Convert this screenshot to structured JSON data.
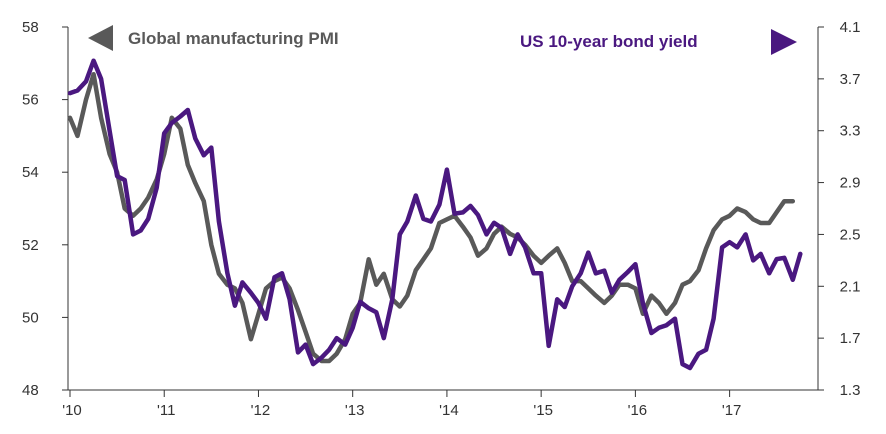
{
  "chart_data": {
    "type": "line",
    "x_ticks": [
      "'10",
      "'11",
      "'12",
      "'13",
      "'14",
      "'15",
      "'16",
      "'17"
    ],
    "left_axis": {
      "ticks": [
        "58",
        "56",
        "54",
        "52",
        "50",
        "48"
      ],
      "range": [
        48,
        58
      ]
    },
    "right_axis": {
      "ticks": [
        "4.1",
        "3.7",
        "3.3",
        "2.9",
        "2.5",
        "2.1",
        "1.7",
        "1.3"
      ],
      "range": [
        1.3,
        4.1
      ]
    },
    "x_range": [
      2010.0,
      2017.8
    ],
    "series": [
      {
        "name": "Global manufacturing PMI",
        "axis": "left",
        "color": "#595959",
        "legend_arrow": "left",
        "points": [
          [
            2010.0,
            55.5
          ],
          [
            2010.08,
            55.0
          ],
          [
            2010.17,
            56.0
          ],
          [
            2010.25,
            56.7
          ],
          [
            2010.33,
            55.5
          ],
          [
            2010.42,
            54.5
          ],
          [
            2010.5,
            54.0
          ],
          [
            2010.58,
            53.0
          ],
          [
            2010.67,
            52.8
          ],
          [
            2010.75,
            53.0
          ],
          [
            2010.83,
            53.3
          ],
          [
            2010.92,
            53.8
          ],
          [
            2011.0,
            54.5
          ],
          [
            2011.08,
            55.5
          ],
          [
            2011.17,
            55.2
          ],
          [
            2011.25,
            54.2
          ],
          [
            2011.33,
            53.7
          ],
          [
            2011.42,
            53.2
          ],
          [
            2011.5,
            52.0
          ],
          [
            2011.58,
            51.2
          ],
          [
            2011.67,
            50.9
          ],
          [
            2011.75,
            50.8
          ],
          [
            2011.83,
            50.4
          ],
          [
            2011.92,
            49.4
          ],
          [
            2012.0,
            50.1
          ],
          [
            2012.08,
            50.8
          ],
          [
            2012.17,
            51.0
          ],
          [
            2012.25,
            51.1
          ],
          [
            2012.33,
            50.8
          ],
          [
            2012.42,
            50.2
          ],
          [
            2012.5,
            49.6
          ],
          [
            2012.58,
            49.0
          ],
          [
            2012.67,
            48.8
          ],
          [
            2012.75,
            48.8
          ],
          [
            2012.83,
            49.0
          ],
          [
            2012.92,
            49.4
          ],
          [
            2013.0,
            50.1
          ],
          [
            2013.08,
            50.4
          ],
          [
            2013.17,
            51.6
          ],
          [
            2013.25,
            50.9
          ],
          [
            2013.33,
            51.2
          ],
          [
            2013.42,
            50.5
          ],
          [
            2013.5,
            50.3
          ],
          [
            2013.58,
            50.6
          ],
          [
            2013.67,
            51.3
          ],
          [
            2013.75,
            51.6
          ],
          [
            2013.83,
            51.9
          ],
          [
            2013.92,
            52.6
          ],
          [
            2014.0,
            52.7
          ],
          [
            2014.08,
            52.8
          ],
          [
            2014.17,
            52.5
          ],
          [
            2014.25,
            52.2
          ],
          [
            2014.33,
            51.7
          ],
          [
            2014.42,
            51.9
          ],
          [
            2014.5,
            52.3
          ],
          [
            2014.58,
            52.5
          ],
          [
            2014.67,
            52.3
          ],
          [
            2014.75,
            52.2
          ],
          [
            2014.83,
            52.0
          ],
          [
            2014.92,
            51.7
          ],
          [
            2015.0,
            51.5
          ],
          [
            2015.08,
            51.7
          ],
          [
            2015.17,
            51.9
          ],
          [
            2015.25,
            51.5
          ],
          [
            2015.33,
            51.0
          ],
          [
            2015.42,
            51.0
          ],
          [
            2015.5,
            50.8
          ],
          [
            2015.58,
            50.6
          ],
          [
            2015.67,
            50.4
          ],
          [
            2015.75,
            50.6
          ],
          [
            2015.83,
            50.9
          ],
          [
            2015.92,
            50.9
          ],
          [
            2016.0,
            50.8
          ],
          [
            2016.08,
            50.1
          ],
          [
            2016.17,
            50.6
          ],
          [
            2016.25,
            50.4
          ],
          [
            2016.33,
            50.1
          ],
          [
            2016.42,
            50.4
          ],
          [
            2016.5,
            50.9
          ],
          [
            2016.58,
            51.0
          ],
          [
            2016.67,
            51.3
          ],
          [
            2016.75,
            51.9
          ],
          [
            2016.83,
            52.4
          ],
          [
            2016.92,
            52.7
          ],
          [
            2017.0,
            52.8
          ],
          [
            2017.08,
            53.0
          ],
          [
            2017.17,
            52.9
          ],
          [
            2017.25,
            52.7
          ],
          [
            2017.33,
            52.6
          ],
          [
            2017.42,
            52.6
          ],
          [
            2017.5,
            52.9
          ],
          [
            2017.58,
            53.2
          ],
          [
            2017.67,
            53.2
          ]
        ]
      },
      {
        "name": "US 10-year bond yield",
        "axis": "right",
        "color": "#4a1880",
        "legend_arrow": "right",
        "points": [
          [
            2010.0,
            3.59
          ],
          [
            2010.08,
            3.61
          ],
          [
            2010.17,
            3.68
          ],
          [
            2010.25,
            3.84
          ],
          [
            2010.33,
            3.7
          ],
          [
            2010.42,
            3.3
          ],
          [
            2010.5,
            2.95
          ],
          [
            2010.58,
            2.92
          ],
          [
            2010.67,
            2.5
          ],
          [
            2010.75,
            2.53
          ],
          [
            2010.83,
            2.62
          ],
          [
            2010.92,
            2.86
          ],
          [
            2011.0,
            3.28
          ],
          [
            2011.08,
            3.36
          ],
          [
            2011.17,
            3.41
          ],
          [
            2011.25,
            3.46
          ],
          [
            2011.33,
            3.24
          ],
          [
            2011.42,
            3.11
          ],
          [
            2011.5,
            3.17
          ],
          [
            2011.58,
            2.6
          ],
          [
            2011.67,
            2.2
          ],
          [
            2011.75,
            1.95
          ],
          [
            2011.83,
            2.13
          ],
          [
            2011.92,
            2.05
          ],
          [
            2012.0,
            1.97
          ],
          [
            2012.08,
            1.85
          ],
          [
            2012.17,
            2.17
          ],
          [
            2012.25,
            2.2
          ],
          [
            2012.33,
            2.0
          ],
          [
            2012.42,
            1.59
          ],
          [
            2012.5,
            1.65
          ],
          [
            2012.58,
            1.5
          ],
          [
            2012.67,
            1.55
          ],
          [
            2012.75,
            1.61
          ],
          [
            2012.83,
            1.7
          ],
          [
            2012.92,
            1.65
          ],
          [
            2013.0,
            1.78
          ],
          [
            2013.08,
            1.98
          ],
          [
            2013.17,
            1.93
          ],
          [
            2013.25,
            1.9
          ],
          [
            2013.33,
            1.7
          ],
          [
            2013.42,
            2.0
          ],
          [
            2013.5,
            2.5
          ],
          [
            2013.58,
            2.6
          ],
          [
            2013.67,
            2.8
          ],
          [
            2013.75,
            2.62
          ],
          [
            2013.83,
            2.6
          ],
          [
            2013.92,
            2.73
          ],
          [
            2014.0,
            3.0
          ],
          [
            2014.08,
            2.66
          ],
          [
            2014.17,
            2.67
          ],
          [
            2014.25,
            2.72
          ],
          [
            2014.33,
            2.65
          ],
          [
            2014.42,
            2.5
          ],
          [
            2014.5,
            2.59
          ],
          [
            2014.58,
            2.55
          ],
          [
            2014.67,
            2.35
          ],
          [
            2014.75,
            2.5
          ],
          [
            2014.83,
            2.4
          ],
          [
            2014.92,
            2.2
          ],
          [
            2015.0,
            2.2
          ],
          [
            2015.08,
            1.64
          ],
          [
            2015.17,
            2.0
          ],
          [
            2015.25,
            1.94
          ],
          [
            2015.33,
            2.1
          ],
          [
            2015.42,
            2.2
          ],
          [
            2015.5,
            2.36
          ],
          [
            2015.58,
            2.2
          ],
          [
            2015.67,
            2.22
          ],
          [
            2015.75,
            2.05
          ],
          [
            2015.83,
            2.15
          ],
          [
            2015.92,
            2.21
          ],
          [
            2016.0,
            2.27
          ],
          [
            2016.08,
            1.97
          ],
          [
            2016.17,
            1.74
          ],
          [
            2016.25,
            1.78
          ],
          [
            2016.33,
            1.8
          ],
          [
            2016.42,
            1.85
          ],
          [
            2016.5,
            1.5
          ],
          [
            2016.58,
            1.47
          ],
          [
            2016.67,
            1.58
          ],
          [
            2016.75,
            1.61
          ],
          [
            2016.83,
            1.85
          ],
          [
            2016.92,
            2.4
          ],
          [
            2017.0,
            2.44
          ],
          [
            2017.08,
            2.4
          ],
          [
            2017.17,
            2.5
          ],
          [
            2017.25,
            2.3
          ],
          [
            2017.33,
            2.35
          ],
          [
            2017.42,
            2.2
          ],
          [
            2017.5,
            2.31
          ],
          [
            2017.58,
            2.32
          ],
          [
            2017.67,
            2.15
          ],
          [
            2017.75,
            2.35
          ]
        ]
      }
    ]
  }
}
